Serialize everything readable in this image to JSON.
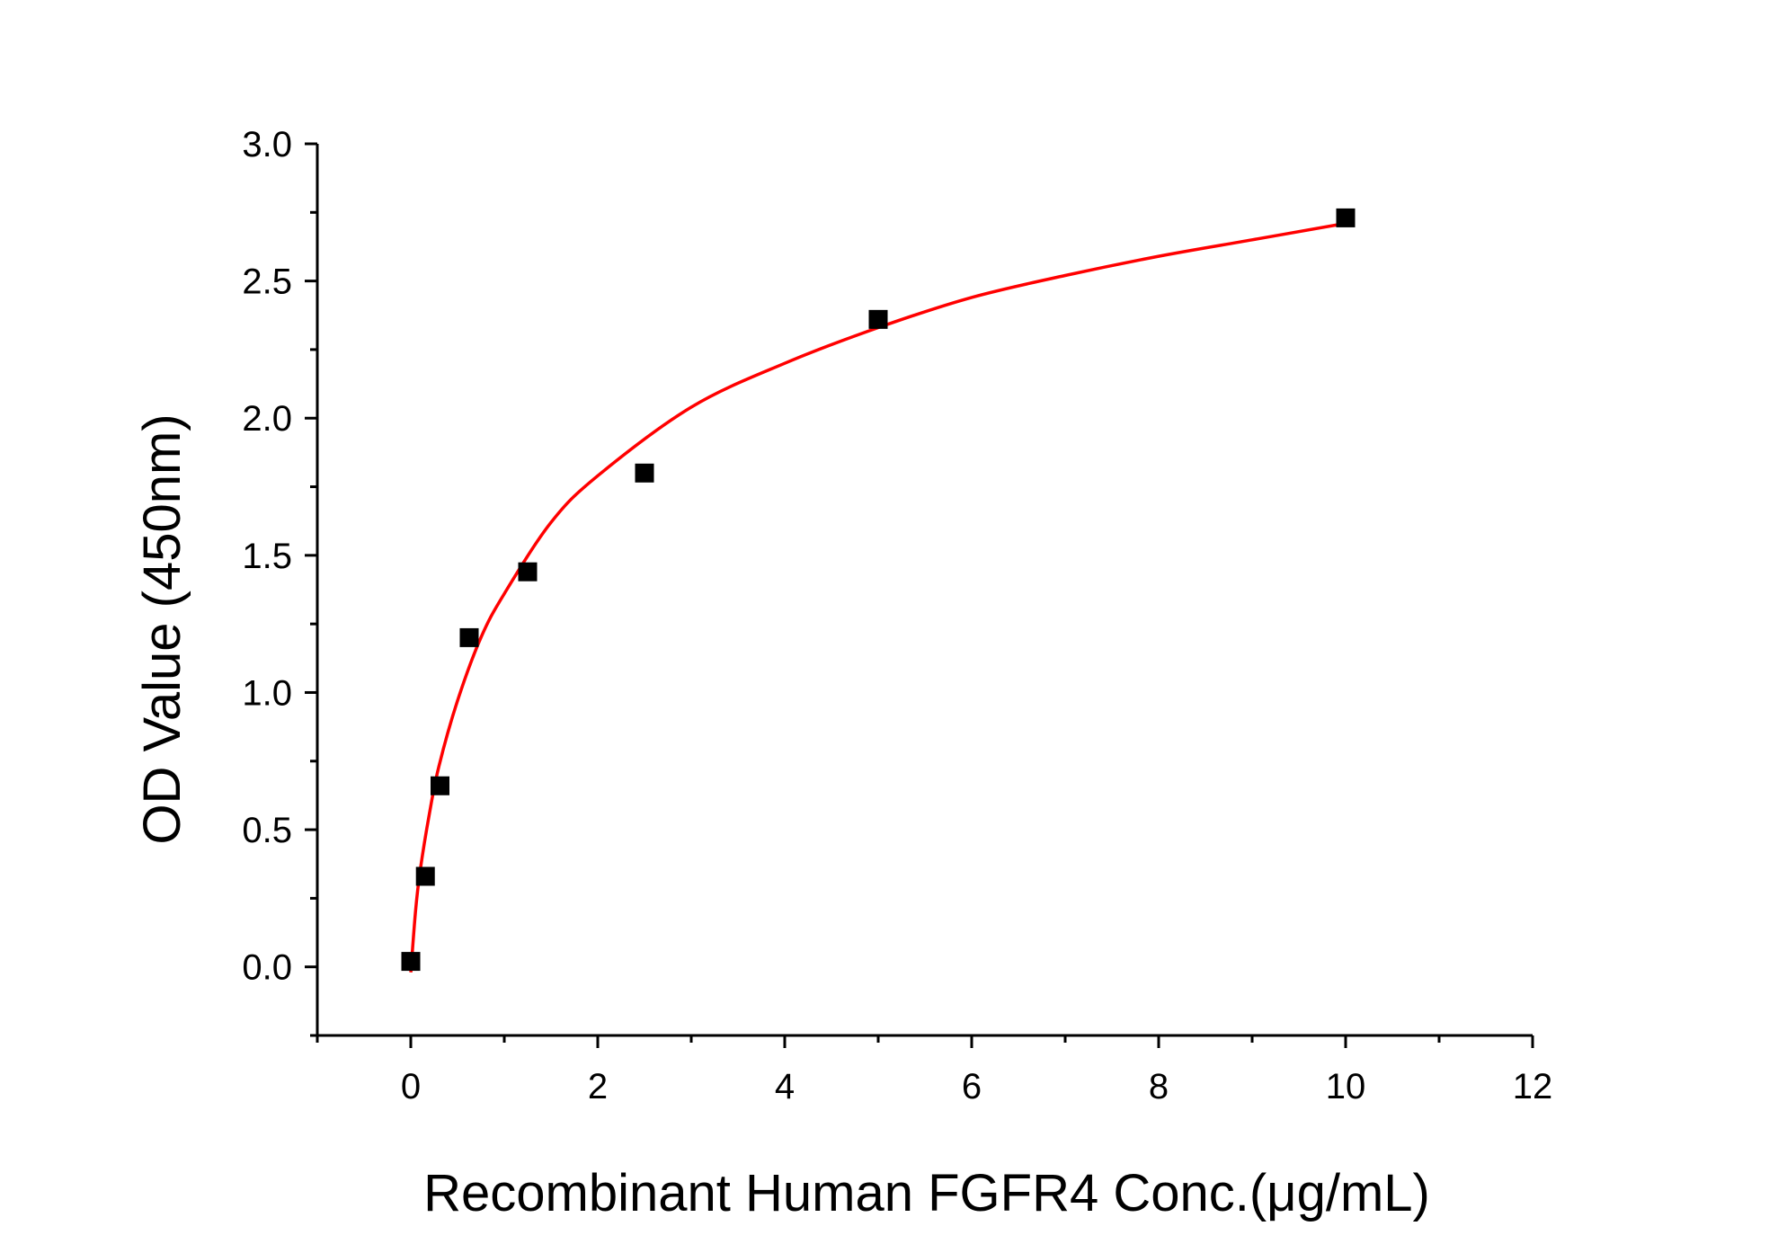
{
  "chart_data": {
    "type": "scatter",
    "title": "",
    "xlabel": "Recombinant Human FGFR4 Conc.(μg/mL)",
    "ylabel": "OD Value (450nm)",
    "xlim": [
      -1,
      12
    ],
    "ylim": [
      -0.25,
      3.0
    ],
    "x_major_ticks": [
      0,
      2,
      4,
      6,
      8,
      10,
      12
    ],
    "x_minor_ticks": [
      -1,
      1,
      3,
      5,
      7,
      9,
      11
    ],
    "x_tick_labels": [
      "0",
      "2",
      "4",
      "6",
      "8",
      "10",
      "12"
    ],
    "y_major_ticks": [
      0.0,
      0.5,
      1.0,
      1.5,
      2.0,
      2.5,
      3.0
    ],
    "y_minor_ticks": [
      -0.25,
      0.25,
      0.75,
      1.25,
      1.75,
      2.25,
      2.75
    ],
    "y_tick_labels": [
      "0.0",
      "0.5",
      "1.0",
      "1.5",
      "2.0",
      "2.5",
      "3.0"
    ],
    "grid": false,
    "legend": "none",
    "series": [
      {
        "kind": "points",
        "marker": "square",
        "color": "#000000",
        "x": [
          0,
          0.156,
          0.3125,
          0.625,
          1.25,
          2.5,
          5,
          10
        ],
        "y": [
          0.02,
          0.33,
          0.66,
          1.2,
          1.44,
          1.8,
          2.36,
          2.73
        ]
      },
      {
        "kind": "fit-curve",
        "color": "#ff0000",
        "x": [
          0,
          0.05,
          0.1,
          0.2,
          0.3,
          0.5,
          0.75,
          1,
          1.5,
          2,
          3,
          4,
          5,
          6,
          7,
          8,
          9,
          10
        ],
        "y": [
          -0.02,
          0.2,
          0.35,
          0.56,
          0.73,
          0.97,
          1.2,
          1.36,
          1.62,
          1.79,
          2.04,
          2.2,
          2.33,
          2.44,
          2.52,
          2.59,
          2.65,
          2.71
        ]
      }
    ]
  }
}
